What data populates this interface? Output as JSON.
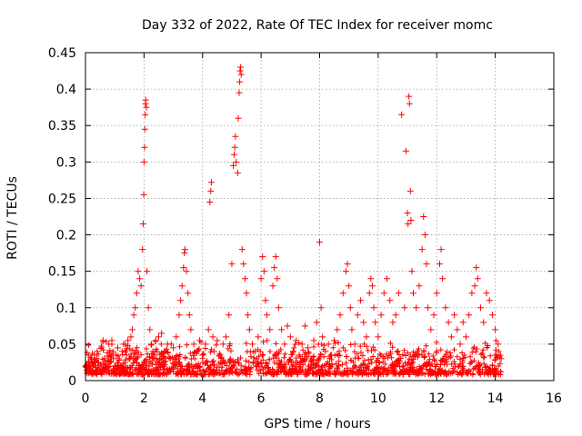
{
  "chart_data": {
    "type": "scatter",
    "title": "Day 332 of 2022, Rate Of TEC Index for receiver momc",
    "xlabel": "GPS time / hours",
    "ylabel": "ROTI / TECUs",
    "xlim": [
      0,
      16
    ],
    "ylim": [
      0,
      0.45
    ],
    "xticks": [
      0,
      2,
      4,
      6,
      8,
      10,
      12,
      14,
      16
    ],
    "yticks": [
      0,
      0.05,
      0.1,
      0.15,
      0.2,
      0.25,
      0.3,
      0.35,
      0.4,
      0.45
    ],
    "xtick_labels": [
      "0",
      "2",
      "4",
      "6",
      "8",
      "10",
      "12",
      "14",
      "16"
    ],
    "ytick_labels": [
      "0",
      "0.05",
      "0.1",
      "0.15",
      "0.2",
      "0.25",
      "0.3",
      "0.35",
      "0.4",
      "0.45"
    ],
    "grid": true,
    "marker": "+",
    "marker_color": "#ff0000",
    "series": [
      {
        "name": "ROTI",
        "points": [
          [
            0.0,
            0.02
          ],
          [
            0.05,
            0.018
          ],
          [
            0.1,
            0.025
          ],
          [
            0.15,
            0.015
          ],
          [
            0.2,
            0.03
          ],
          [
            0.25,
            0.022
          ],
          [
            0.3,
            0.035
          ],
          [
            0.35,
            0.018
          ],
          [
            0.4,
            0.04
          ],
          [
            0.45,
            0.025
          ],
          [
            0.5,
            0.02
          ],
          [
            0.55,
            0.045
          ],
          [
            0.6,
            0.055
          ],
          [
            0.65,
            0.03
          ],
          [
            0.7,
            0.02
          ],
          [
            0.75,
            0.038
          ],
          [
            0.8,
            0.05
          ],
          [
            0.85,
            0.025
          ],
          [
            0.9,
            0.055
          ],
          [
            0.95,
            0.03
          ],
          [
            1.0,
            0.02
          ],
          [
            1.05,
            0.035
          ],
          [
            1.1,
            0.045
          ],
          [
            1.15,
            0.028
          ],
          [
            1.2,
            0.018
          ],
          [
            1.25,
            0.04
          ],
          [
            1.3,
            0.05
          ],
          [
            1.35,
            0.025
          ],
          [
            1.4,
            0.035
          ],
          [
            1.45,
            0.055
          ],
          [
            1.5,
            0.03
          ],
          [
            1.55,
            0.06
          ],
          [
            1.6,
            0.07
          ],
          [
            1.65,
            0.09
          ],
          [
            1.7,
            0.1
          ],
          [
            1.75,
            0.12
          ],
          [
            1.8,
            0.15
          ],
          [
            1.85,
            0.14
          ],
          [
            1.9,
            0.13
          ],
          [
            1.95,
            0.18
          ],
          [
            1.97,
            0.215
          ],
          [
            1.99,
            0.255
          ],
          [
            2.0,
            0.3
          ],
          [
            2.02,
            0.32
          ],
          [
            2.03,
            0.345
          ],
          [
            2.04,
            0.365
          ],
          [
            2.05,
            0.38
          ],
          [
            2.06,
            0.385
          ],
          [
            2.08,
            0.375
          ],
          [
            2.1,
            0.15
          ],
          [
            2.15,
            0.1
          ],
          [
            2.2,
            0.07
          ],
          [
            2.25,
            0.05
          ],
          [
            2.3,
            0.04
          ],
          [
            2.35,
            0.03
          ],
          [
            2.4,
            0.055
          ],
          [
            2.45,
            0.04
          ],
          [
            2.5,
            0.06
          ],
          [
            2.55,
            0.035
          ],
          [
            2.6,
            0.065
          ],
          [
            2.7,
            0.04
          ],
          [
            2.8,
            0.05
          ],
          [
            2.9,
            0.03
          ],
          [
            3.0,
            0.045
          ],
          [
            3.1,
            0.06
          ],
          [
            3.2,
            0.09
          ],
          [
            3.25,
            0.11
          ],
          [
            3.3,
            0.13
          ],
          [
            3.35,
            0.155
          ],
          [
            3.38,
            0.175
          ],
          [
            3.4,
            0.18
          ],
          [
            3.45,
            0.15
          ],
          [
            3.5,
            0.12
          ],
          [
            3.55,
            0.09
          ],
          [
            3.6,
            0.07
          ],
          [
            3.7,
            0.05
          ],
          [
            3.8,
            0.04
          ],
          [
            3.9,
            0.055
          ],
          [
            4.0,
            0.035
          ],
          [
            4.1,
            0.05
          ],
          [
            4.2,
            0.07
          ],
          [
            4.25,
            0.245
          ],
          [
            4.28,
            0.26
          ],
          [
            4.3,
            0.272
          ],
          [
            4.35,
            0.06
          ],
          [
            4.4,
            0.04
          ],
          [
            4.5,
            0.055
          ],
          [
            4.6,
            0.035
          ],
          [
            4.7,
            0.05
          ],
          [
            4.8,
            0.06
          ],
          [
            4.9,
            0.09
          ],
          [
            5.0,
            0.16
          ],
          [
            5.05,
            0.295
          ],
          [
            5.08,
            0.31
          ],
          [
            5.1,
            0.32
          ],
          [
            5.12,
            0.335
          ],
          [
            5.15,
            0.3
          ],
          [
            5.2,
            0.285
          ],
          [
            5.22,
            0.36
          ],
          [
            5.25,
            0.395
          ],
          [
            5.27,
            0.41
          ],
          [
            5.28,
            0.425
          ],
          [
            5.3,
            0.43
          ],
          [
            5.32,
            0.42
          ],
          [
            5.35,
            0.18
          ],
          [
            5.4,
            0.16
          ],
          [
            5.45,
            0.14
          ],
          [
            5.5,
            0.12
          ],
          [
            5.55,
            0.09
          ],
          [
            5.6,
            0.07
          ],
          [
            5.7,
            0.05
          ],
          [
            5.8,
            0.04
          ],
          [
            5.9,
            0.06
          ],
          [
            6.0,
            0.14
          ],
          [
            6.05,
            0.17
          ],
          [
            6.1,
            0.15
          ],
          [
            6.15,
            0.11
          ],
          [
            6.2,
            0.09
          ],
          [
            6.3,
            0.07
          ],
          [
            6.4,
            0.13
          ],
          [
            6.45,
            0.155
          ],
          [
            6.5,
            0.17
          ],
          [
            6.55,
            0.14
          ],
          [
            6.6,
            0.1
          ],
          [
            6.7,
            0.07
          ],
          [
            6.8,
            0.05
          ],
          [
            6.9,
            0.075
          ],
          [
            7.0,
            0.06
          ],
          [
            7.1,
            0.04
          ],
          [
            7.2,
            0.055
          ],
          [
            7.3,
            0.035
          ],
          [
            7.4,
            0.05
          ],
          [
            7.5,
            0.075
          ],
          [
            7.6,
            0.045
          ],
          [
            7.7,
            0.03
          ],
          [
            7.8,
            0.055
          ],
          [
            7.9,
            0.08
          ],
          [
            8.0,
            0.19
          ],
          [
            8.05,
            0.1
          ],
          [
            8.1,
            0.06
          ],
          [
            8.2,
            0.04
          ],
          [
            8.3,
            0.05
          ],
          [
            8.4,
            0.035
          ],
          [
            8.5,
            0.055
          ],
          [
            8.6,
            0.07
          ],
          [
            8.7,
            0.09
          ],
          [
            8.8,
            0.12
          ],
          [
            8.9,
            0.15
          ],
          [
            8.95,
            0.16
          ],
          [
            9.0,
            0.13
          ],
          [
            9.05,
            0.1
          ],
          [
            9.1,
            0.07
          ],
          [
            9.2,
            0.05
          ],
          [
            9.3,
            0.09
          ],
          [
            9.4,
            0.11
          ],
          [
            9.5,
            0.08
          ],
          [
            9.6,
            0.06
          ],
          [
            9.7,
            0.12
          ],
          [
            9.75,
            0.14
          ],
          [
            9.8,
            0.13
          ],
          [
            9.85,
            0.1
          ],
          [
            9.9,
            0.08
          ],
          [
            10.0,
            0.06
          ],
          [
            10.1,
            0.09
          ],
          [
            10.2,
            0.12
          ],
          [
            10.3,
            0.14
          ],
          [
            10.4,
            0.11
          ],
          [
            10.5,
            0.08
          ],
          [
            10.6,
            0.09
          ],
          [
            10.7,
            0.12
          ],
          [
            10.8,
            0.365
          ],
          [
            10.9,
            0.1
          ],
          [
            10.95,
            0.315
          ],
          [
            11.0,
            0.23
          ],
          [
            11.02,
            0.215
          ],
          [
            11.05,
            0.39
          ],
          [
            11.07,
            0.38
          ],
          [
            11.1,
            0.26
          ],
          [
            11.12,
            0.22
          ],
          [
            11.15,
            0.15
          ],
          [
            11.2,
            0.12
          ],
          [
            11.3,
            0.1
          ],
          [
            11.4,
            0.13
          ],
          [
            11.5,
            0.18
          ],
          [
            11.55,
            0.225
          ],
          [
            11.6,
            0.2
          ],
          [
            11.65,
            0.16
          ],
          [
            11.7,
            0.1
          ],
          [
            11.8,
            0.07
          ],
          [
            11.9,
            0.09
          ],
          [
            12.0,
            0.12
          ],
          [
            12.1,
            0.16
          ],
          [
            12.15,
            0.18
          ],
          [
            12.2,
            0.14
          ],
          [
            12.3,
            0.1
          ],
          [
            12.4,
            0.08
          ],
          [
            12.5,
            0.06
          ],
          [
            12.6,
            0.09
          ],
          [
            12.7,
            0.07
          ],
          [
            12.8,
            0.05
          ],
          [
            12.9,
            0.08
          ],
          [
            13.0,
            0.06
          ],
          [
            13.1,
            0.09
          ],
          [
            13.2,
            0.12
          ],
          [
            13.3,
            0.13
          ],
          [
            13.35,
            0.155
          ],
          [
            13.4,
            0.14
          ],
          [
            13.5,
            0.1
          ],
          [
            13.6,
            0.08
          ],
          [
            13.7,
            0.12
          ],
          [
            13.8,
            0.11
          ],
          [
            13.9,
            0.09
          ],
          [
            14.0,
            0.07
          ],
          [
            14.1,
            0.05
          ],
          [
            14.2,
            0.03
          ]
        ]
      }
    ]
  }
}
